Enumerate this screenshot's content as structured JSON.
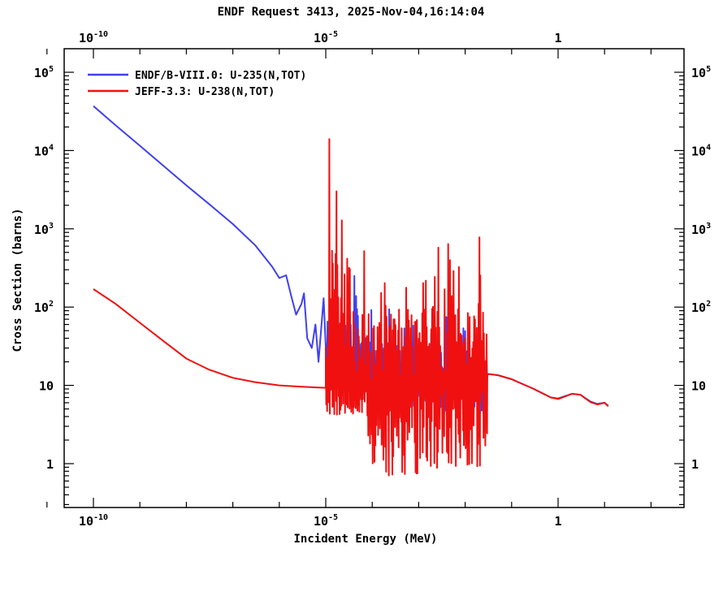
{
  "page": {
    "title": "ENDF Request 3413, 2025-Nov-04,16:14:04"
  },
  "chart_data": {
    "type": "line",
    "title": "ENDF Request 3413, 2025-Nov-04,16:14:04",
    "xlabel": "Incident Energy (MeV)",
    "ylabel": "Cross Section (barns)",
    "x_scale": "log",
    "y_scale": "log",
    "xlim": [
      1e-11,
      300
    ],
    "ylim": [
      0.25,
      150000
    ],
    "grid": false,
    "legend_position": "top-left",
    "x_ticks": [
      {
        "value": 1e-10,
        "base": "10",
        "exp": "-10"
      },
      {
        "value": 1e-05,
        "base": "10",
        "exp": "-5"
      },
      {
        "value": 1,
        "base": "1",
        "exp": ""
      }
    ],
    "y_ticks": [
      {
        "value": 1,
        "base": "1",
        "exp": ""
      },
      {
        "value": 10,
        "base": "10",
        "exp": ""
      },
      {
        "value": 100,
        "base": "10",
        "exp": "2"
      },
      {
        "value": 1000,
        "base": "10",
        "exp": "3"
      },
      {
        "value": 10000,
        "base": "10",
        "exp": "4"
      },
      {
        "value": 100000,
        "base": "10",
        "exp": "5"
      }
    ],
    "series": [
      {
        "name": "ENDF/B-VIII.0: U-235(N,TOT)",
        "color": "#4040f0",
        "points": [
          [
            1e-10,
            37000
          ],
          [
            3e-10,
            21000
          ],
          [
            1e-09,
            11500
          ],
          [
            3e-09,
            6600
          ],
          [
            1e-08,
            3600
          ],
          [
            3e-08,
            2100
          ],
          [
            1e-07,
            1150
          ],
          [
            3e-07,
            620
          ],
          [
            7e-07,
            330
          ],
          [
            1e-06,
            235
          ],
          [
            1.4e-06,
            255
          ],
          [
            1.8e-06,
            140
          ],
          [
            2.3e-06,
            80
          ],
          [
            3e-06,
            110
          ],
          [
            3.4e-06,
            150
          ],
          [
            4e-06,
            40
          ],
          [
            5e-06,
            30
          ],
          [
            6e-06,
            60
          ],
          [
            7e-06,
            20
          ],
          [
            9e-06,
            130
          ]
        ],
        "resonance_range": [
          1e-05,
          0.03
        ],
        "baseline_range": [
          20,
          12
        ],
        "peak_max": 450,
        "tail_points": [
          [
            0.03,
            14
          ],
          [
            0.05,
            13.5
          ],
          [
            0.1,
            12
          ],
          [
            0.3,
            9
          ],
          [
            0.7,
            7
          ],
          [
            1,
            6.8
          ],
          [
            2,
            7.8
          ],
          [
            3,
            7.6
          ],
          [
            5,
            6.2
          ],
          [
            7,
            5.8
          ],
          [
            10,
            6.0
          ],
          [
            12,
            5.5
          ]
        ]
      },
      {
        "name": "JEFF-3.3: U-238(N,TOT)",
        "color": "#f01010",
        "points": [
          [
            1e-10,
            170
          ],
          [
            3e-10,
            110
          ],
          [
            1e-09,
            63
          ],
          [
            3e-09,
            38
          ],
          [
            1e-08,
            22
          ],
          [
            3e-08,
            16
          ],
          [
            1e-07,
            12.5
          ],
          [
            3e-07,
            11
          ],
          [
            1e-06,
            10
          ],
          [
            3e-06,
            9.6
          ],
          [
            7e-06,
            9.4
          ],
          [
            1e-05,
            9.3
          ]
        ],
        "resonance_range": [
          1e-05,
          0.03
        ],
        "baseline_range": [
          9.5,
          12
        ],
        "peak_max": 14000,
        "tail_points": [
          [
            0.03,
            14
          ],
          [
            0.05,
            13.5
          ],
          [
            0.1,
            12
          ],
          [
            0.3,
            9
          ],
          [
            0.7,
            7
          ],
          [
            1,
            6.7
          ],
          [
            2,
            7.8
          ],
          [
            3,
            7.6
          ],
          [
            5,
            6.1
          ],
          [
            7,
            5.7
          ],
          [
            10,
            6.0
          ],
          [
            12,
            5.4
          ]
        ]
      }
    ]
  }
}
